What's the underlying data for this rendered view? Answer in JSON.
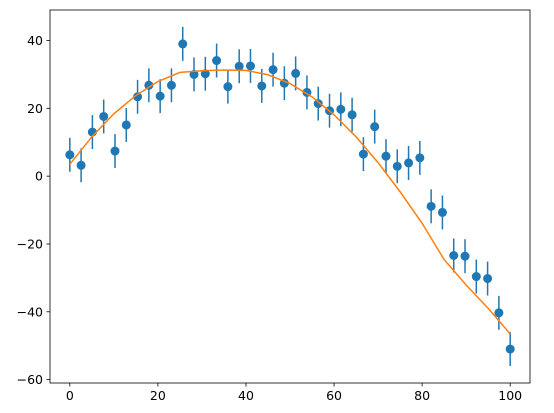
{
  "chart_data": {
    "type": "scatter",
    "title": "",
    "xlabel": "",
    "ylabel": "",
    "xlim": [
      -4.5,
      104.5
    ],
    "ylim": [
      -61,
      49
    ],
    "grid": false,
    "legend": "none",
    "x_ticks": [
      0,
      20,
      40,
      60,
      80,
      100
    ],
    "x_tick_labels": [
      "0",
      "20",
      "40",
      "60",
      "80",
      "100"
    ],
    "y_ticks": [
      40,
      20,
      0,
      -20,
      -40,
      -60
    ],
    "y_tick_labels": [
      "40",
      "20",
      "0",
      "−20",
      "−40",
      "−60"
    ],
    "series": [
      {
        "kind": "errorbar",
        "color": "#1f77b4",
        "x": [
          0,
          2.564,
          5.128,
          7.692,
          10.256,
          12.821,
          15.385,
          17.949,
          20.513,
          23.077,
          25.641,
          28.205,
          30.769,
          33.333,
          35.897,
          38.462,
          41.026,
          43.59,
          46.154,
          48.718,
          51.282,
          53.846,
          56.41,
          58.974,
          61.538,
          64.103,
          66.667,
          69.231,
          71.795,
          74.359,
          76.923,
          79.487,
          82.051,
          84.615,
          87.179,
          89.744,
          92.308,
          94.872,
          97.436,
          100
        ],
        "y": [
          6.3,
          3.2,
          13.0,
          17.6,
          7.4,
          15.1,
          23.4,
          26.8,
          23.6,
          26.8,
          39.0,
          30.0,
          30.2,
          34.1,
          26.4,
          32.4,
          32.5,
          26.6,
          31.4,
          27.4,
          30.3,
          24.7,
          21.4,
          19.3,
          19.7,
          18.1,
          6.5,
          14.6,
          5.9,
          2.9,
          3.9,
          5.4,
          -8.9,
          -10.7,
          -23.4,
          -23.6,
          -29.6,
          -30.2,
          -40.3,
          -51.0
        ],
        "yerr": 5
      },
      {
        "kind": "line",
        "color": "#ff7f0e",
        "x": [
          0,
          5,
          10,
          15,
          20,
          25,
          30,
          35,
          40,
          45,
          50,
          55,
          60,
          65,
          70,
          75,
          80,
          85,
          90,
          95,
          100
        ],
        "y": [
          3.5,
          11.6,
          18.4,
          23.8,
          27.9,
          30.6,
          31.1,
          31.3,
          31.2,
          29.9,
          27.3,
          23.4,
          18.1,
          11.6,
          4.0,
          -4.6,
          -13.9,
          -24.6,
          -32.1,
          -39.0,
          -46.5
        ]
      }
    ]
  }
}
